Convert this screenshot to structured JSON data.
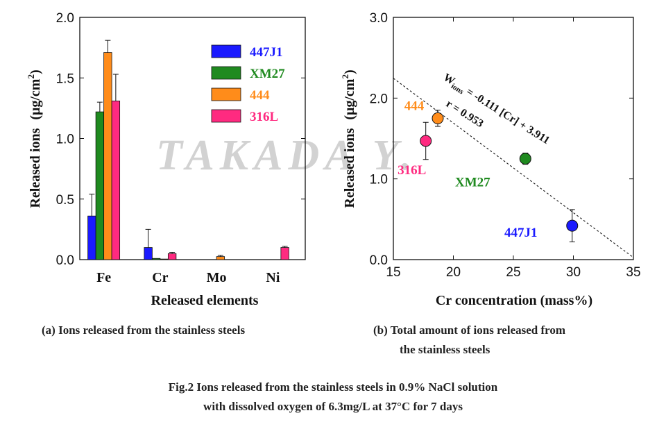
{
  "watermark": "TAKADA Y.",
  "chart_data": [
    {
      "type": "bar",
      "xlabel": "Released elements",
      "ylabel": "Released ions",
      "yunit_base": "(μg/cm",
      "yunit_sup": "2",
      "yunit_end": ")",
      "ylim": [
        0,
        2.0
      ],
      "yticks": [
        "0.0",
        "0.5",
        "1.0",
        "1.5",
        "2.0"
      ],
      "categories": [
        "Fe",
        "Cr",
        "Mo",
        "Ni"
      ],
      "legend_position": "top-right",
      "series": [
        {
          "name": "447J1",
          "color": "#1a1aff",
          "values": [
            0.36,
            0.1,
            0.0,
            0.0
          ],
          "errors": [
            0.18,
            0.15,
            0.0,
            0.0
          ]
        },
        {
          "name": "XM27",
          "color": "#1f8a1f",
          "values": [
            1.22,
            0.01,
            0.0,
            0.0
          ],
          "errors": [
            0.08,
            0.0,
            0.0,
            0.0
          ]
        },
        {
          "name": "444",
          "color": "#ff8c1a",
          "values": [
            1.71,
            0.005,
            0.025,
            0.0
          ],
          "errors": [
            0.1,
            0.0,
            0.01,
            0.0
          ]
        },
        {
          "name": "316L",
          "color": "#ff2a80",
          "values": [
            1.31,
            0.05,
            0.0,
            0.1
          ],
          "errors": [
            0.22,
            0.01,
            0.0,
            0.01
          ]
        }
      ],
      "caption": "(a) Ions released from the stainless steels"
    },
    {
      "type": "scatter",
      "xlabel": "Cr concentration  (mass%)",
      "ylabel": "Released ions",
      "yunit_base": "(μg/cm",
      "yunit_sup": "2",
      "yunit_end": ")",
      "xlim": [
        15,
        35
      ],
      "ylim": [
        0,
        3.0
      ],
      "xticks": [
        "15",
        "20",
        "25",
        "30",
        "35"
      ],
      "yticks": [
        "0.0",
        "1.0",
        "2.0",
        "3.0"
      ],
      "points": [
        {
          "name": "444",
          "x": 18.7,
          "y": 1.75,
          "err": 0.1,
          "color": "#ff8c1a"
        },
        {
          "name": "316L",
          "x": 17.7,
          "y": 1.47,
          "err": 0.23,
          "color": "#ff2a80"
        },
        {
          "name": "XM27",
          "x": 26.0,
          "y": 1.25,
          "err": 0.07,
          "color": "#1f8a1f"
        },
        {
          "name": "447J1",
          "x": 29.9,
          "y": 0.42,
          "err": 0.2,
          "color": "#1a1aff"
        }
      ],
      "fit_line": {
        "slope": -0.111,
        "intercept": 3.911
      },
      "equation_prefix": "W",
      "equation_sub": "ions",
      "equation_rest": " = -0.111 [Cr] + 3.911",
      "correlation": "r = 0.953",
      "caption_line1": "(b) Total amount of ions released from",
      "caption_line2": "the stainless steels"
    }
  ],
  "figure_caption_line1": "Fig.2   Ions released from the stainless steels in 0.9% NaCl solution",
  "figure_caption_line2": "with dissolved oxygen of 6.3mg/L at 37°C for 7 days"
}
